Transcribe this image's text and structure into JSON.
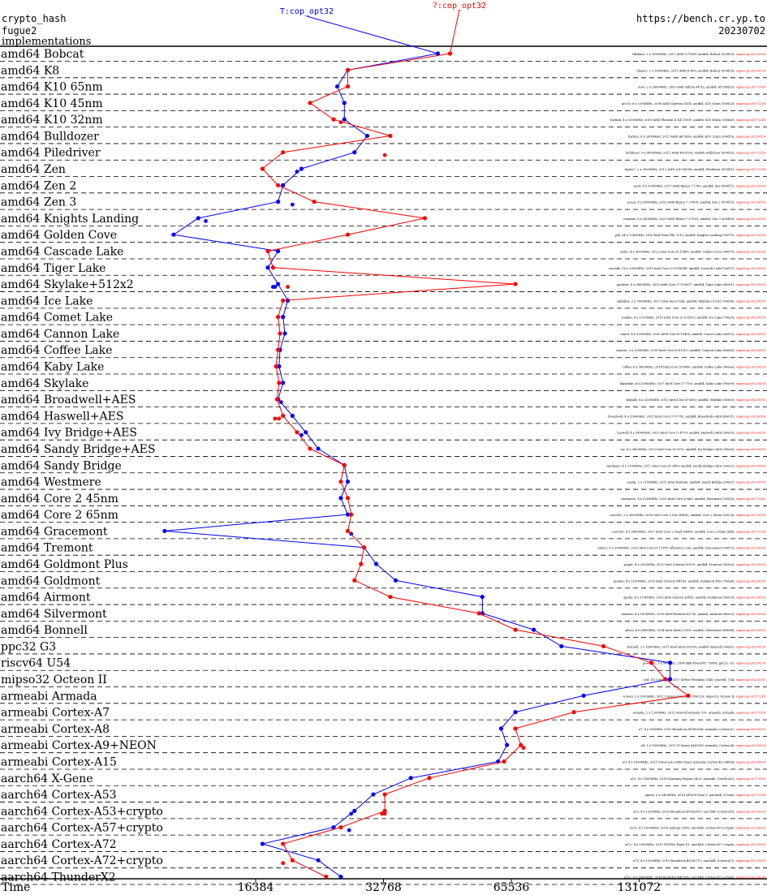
{
  "header": {
    "left_lines": [
      "crypto_hash",
      "fugue2",
      "implementations"
    ],
    "right_lines": [
      "https://bench.cr.yp.to",
      "20230702"
    ]
  },
  "chart_data": {
    "type": "line",
    "xscale": "log2",
    "xlabel": "Time",
    "xticks": [
      16384,
      32768,
      65536,
      131072
    ],
    "xlim": [
      4096,
      262144
    ],
    "colors": {
      "T": "#0000ff",
      "Q": "#ff0000"
    },
    "series": [
      {
        "name": "T:cop_opt32",
        "color": "#0000ff"
      },
      {
        "name": "?:cop_opt32",
        "color": "#ff0000"
      }
    ],
    "categories": [
      "amd64 Bobcat",
      "amd64 K8",
      "amd64 K10 65nm",
      "amd64 K10 45nm",
      "amd64 K10 32nm",
      "amd64 Bulldozer",
      "amd64 Piledriver",
      "amd64 Zen",
      "amd64 Zen 2",
      "amd64 Zen 3",
      "amd64 Knights Landing",
      "amd64 Golden Cove",
      "amd64 Cascade Lake",
      "amd64 Tiger Lake",
      "amd64 Skylake+512x2",
      "amd64 Ice Lake",
      "amd64 Comet Lake",
      "amd64 Cannon Lake",
      "amd64 Coffee Lake",
      "amd64 Kaby Lake",
      "amd64 Skylake",
      "amd64 Broadwell+AES",
      "amd64 Haswell+AES",
      "amd64 Ivy Bridge+AES",
      "amd64 Sandy Bridge+AES",
      "amd64 Sandy Bridge",
      "amd64 Westmere",
      "amd64 Core 2 45nm",
      "amd64 Core 2 65nm",
      "amd64 Gracemont",
      "amd64 Tremont",
      "amd64 Goldmont Plus",
      "amd64 Goldmont",
      "amd64 Airmont",
      "amd64 Silvermont",
      "amd64 Bonnell",
      "ppc32 G3",
      "riscv64 U54",
      "mipso32 Octeon II",
      "armeabi Armada",
      "armeabi Cortex-A7",
      "armeabi Cortex-A8",
      "armeabi Cortex-A9+NEON",
      "armeabi Cortex-A15",
      "aarch64 X-Gene",
      "aarch64 Cortex-A53",
      "aarch64 Cortex-A53+crypto",
      "aarch64 Cortex-A57+crypto",
      "aarch64 Cortex-A72",
      "aarch64 Cortex-A72+crypto",
      "aarch64 ThunderX2"
    ],
    "machines": [
      "bllsbaut; 2 x 1600MHz; 2011 AMD G-T56N; amd64; Bobcat (500f20); supercop-20230530",
      "hlaaO1; 2 x 1800MHz; 2011 AMD E-450; amd64; Bobcat (500f20); supercop-20230530",
      "bore; 2 x 2600MHz; 2005 AMD Athlon 64 X2; amd64; K8 (40f32); supercop-20171020",
      "gcc10; 8 x 2194MHz; 2008 AMD Opteron 8354; amd64; K10 65nm (100f23); supercop-20171218",
      "hydra4; 4 x 3300MHz; 2010 AMD Phenom II X4 1100T; amd64; K10 45nm (100fa0); supercop-20171218",
      "hydra5; 6 x 2800MHz; 2011 AMD A8-3850; amd64; K10 32nm (300f10); supercop-20230530",
      "bulldozer; 8 x 4000MHz; 2012 AMD FX-8350; amd64; Bulldozer (600f20); supercop-20171218",
      "hydra7; 2 x 3900MHz; 2012 AMD A10-5800K; amd64; Piledriver (610f01); supercop-20171218",
      "zen0; 8 x 3500MHz; 2017 AMD Ryzen 7 1700; amd64; Zen (800f11); supercop-20230530",
      "zen2a; 8 x 3600MHz; 2019 AMD Ryzen 7 3700X; amd64; Zen 2 (870f10); supercop-20230530",
      "cezanne; 8 x 3900MHz; 2021 AMD Ryzen 7 5700G; amd64; Zen 3 (a50f00); supercop-20230530",
      "phi; 64 x 1300MHz; 2016 Intel Xeon Phi 7210; amd64; Knights Landing (50671); supercop-20230530",
      "alder; 4 x 3000MHz; 2022 Intel Core i5-12400; amd64; Golden Cove (90675); supercop-20230530",
      "cascade; 18 x 3000MHz; 2019 Intel Core i9-10980XE; amd64; Cascade Lake (50657); supercop-20230530",
      "gardner; 8 x 2800MHz; 2020 Intel Core i7-1165G7; amd64; Tiger Lake (806c1); supercop-20230530",
      "skylakex; 2 x 3500MHz; 2017 Intel Xeon Gold; amd64; Skylake+512x2 (50654); supercop-20230530",
      "icelake; 4 x 1100MHz; 2019 Intel Core i5-1035G1; amd64; Ice Lake (706e5); supercop-20230530",
      "comet; 4 x 3200MHz; 2020 Intel Core i5-10400; amd64; Comet Lake (a0653); supercop-20230530",
      "cannon; 2 x 2200MHz; 2018 Intel Core i3-8121U; amd64; Cannon Lake (60663); supercop-20230530",
      "coffee; 6 x 3600MHz; 2018 Intel Core i5-8400; amd64; Coffee Lake (906ea); supercop-20230530",
      "kabylake; 4 x 3500MHz; 2017 Intel Core i7-7700; amd64; Kaby Lake (906e9); supercop-20230530",
      "skylake; 4 x 3200MHz; 2015 Intel Core i5-6500; amd64; Skylake (506e3); supercop-20230530",
      "broadwell; 4 x 3300MHz; 2015 Intel Core i7-5775C; amd64; Broadwell+AES (40671); supercop-20230530",
      "haswell; 4 x 3400MHz; 2013 Intel Core i7-4770; amd64; Haswell+AES (306c3); supercop-20230530",
      "ivy; 4 x 3400MHz; 2012 Intel Core i5-3570; amd64; Ivy Bridge+AES (306a9); supercop-20230530",
      "sandyaes; 4 x 3100MHz; 2011 Intel Core i5-2400; amd64; Sandy Bridge+AES (206a7); supercop-20230530",
      "sandy; 2 x 2100MHz; 2011 Intel Pentium; amd64; Sandy Bridge (206a7); supercop-20230530",
      "westmere; 4 x 3200MHz; 2010 Intel Core i5-660; amd64; Westmere (20652); supercop-20171020",
      "core245; 2 x 3000MHz; 2009 Intel Core 2 Duo E8400; amd64; Core 2 45nm (1067a); supercop-20230530",
      "core265; 4 x 2400MHz; 2007 Intel Core 2 Quad Q6600; amd64; Core 2 65nm (6fb); supercop-20171218",
      "alder2; 8 x 2900MHz; 2022 Intel Core i5-1235U efficiency core; amd64; Gracemont (90672); supercop-20230530",
      "jasper; 4 x 2000MHz; 2021 Intel Celeron N5105; amd64; Tremont (906c0); supercop-20230530",
      "gemini; 4 x 1100MHz; 2019 Intel Celeron N4100; amd64; Goldmont Plus (706a8); supercop-20230530",
      "apollo; 4 x 1100MHz; 2016 Intel Celeron J3455; amd64; Goldmont (506c9); supercop-20230530",
      "airmont; 4 x 1600MHz; 2016 Intel Pentium N3700; amd64; Airmont (406c3); supercop-20230530",
      "silver; 4 x 2400MHz; 2014 Intel Atom C2550; amd64; Silvermont (406d8); supercop-20230530",
      "bonnell; 2 x 1600MHz; 2011 Intel Atom D2500; amd64; Bonnell (30661); supercop-20230530",
      "powerpc; 1 x 500MHz; 2004 IBM PowerPC 750FX; ppc32; G3; supercop-20230530",
      "u54; 4 x 1000MHz; 2017 SiFive Freedom U540; riscv64; U54; supercop-20230530",
      "octeon; 2 x 1000MHz; 2011 Cavium Octeon II CN6120; mipso32; Octeon II; supercop-20171218",
      "armada; 2 x 1200MHz; 2012 Marvell Armada 370; armeabi; Armada; supercop-20171218",
      "a7; 4 x 900MHz; 2015 Broadcom BCM2836; armeabi; Cortex-A7; supercop-20230530",
      "a8; 1 x 1000MHz; 2012 TI Sitara AM3359; armeabi; Cortex-A8; supercop-20230530",
      "a9; 4 x 1000MHz; 2011 Freescale i.MX6 Quad; armeabi; Cortex-A9+NEON; supercop-20230530",
      "a15; 4 x 2000MHz; 2014 Samsung Exynos 5422; armeabi; Cortex-A15; supercop-20171020",
      "xgene; 8 x 2400MHz; 2014 APM X-Gene 1; aarch64; X-Gene; supercop-20171218",
      "a53; 4 x 1200MHz; 2016 Broadcom BCM2837; aarch64; Cortex-A53; supercop-20230530",
      "a53c; 4 x 1500MHz; 2016 Amlogic S905; aarch64; Cortex-A53+crypto; supercop-20230530",
      "a57c; 4 x 1900MHz; 2015 NVIDIA Tegra X1; aarch64; Cortex-A57+crypto; supercop-20230530",
      "a72; 4 x 1500MHz; 2019 Broadcom BCM2711; aarch64; Cortex-A72; supercop-20230530",
      "a72c; 4 x 1800MHz; 2016 Rockchip RK3399; aarch64; Cortex-A72+crypto; supercop-20230530",
      "thunderx2; 56 x 2500MHz; 2018 Cavium ThunderX2 CN9980; aarch64; ThunderX2; supercop-20230530"
    ],
    "T_values": [
      44000,
      27000,
      25500,
      26500,
      26500,
      30000,
      28000,
      21000,
      19000,
      18500,
      12000,
      10500,
      18500,
      17500,
      18500,
      19500,
      19000,
      19200,
      18700,
      18600,
      19000,
      18500,
      20000,
      21500,
      23000,
      26500,
      27000,
      26000,
      27000,
      10000,
      29500,
      31500,
      35000,
      56000,
      56000,
      74000,
      86000,
      155000,
      155000,
      97000,
      67000,
      62000,
      64000,
      61000,
      38000,
      31000,
      28000,
      25000,
      17000,
      23000,
      26000
    ],
    "Q_values": [
      47000,
      27000,
      27000,
      22000,
      25000,
      34000,
      19000,
      17000,
      18500,
      22500,
      41000,
      27000,
      17500,
      18000,
      67000,
      19000,
      18500,
      18700,
      18500,
      18300,
      18600,
      18400,
      19000,
      20500,
      22000,
      26500,
      26000,
      27000,
      27500,
      27000,
      29500,
      29000,
      28000,
      34000,
      55000,
      67000,
      108000,
      140000,
      151000,
      171000,
      92000,
      67000,
      69000,
      63000,
      42000,
      33000,
      33000,
      26000,
      19000,
      20000,
      24000
    ],
    "T_extra": [
      [
        7,
        20500
      ],
      [
        9,
        20000
      ],
      [
        10,
        12500
      ],
      [
        14,
        18200
      ],
      [
        14,
        18000
      ],
      [
        21,
        18800
      ],
      [
        23,
        21000
      ],
      [
        29,
        27500
      ],
      [
        46,
        27500
      ],
      [
        47,
        27200
      ]
    ],
    "Q_extra": [
      [
        4,
        26000
      ],
      [
        6,
        33000
      ],
      [
        14,
        19500
      ],
      [
        22,
        18200
      ],
      [
        22,
        18600
      ],
      [
        42,
        70000
      ],
      [
        46,
        33000
      ],
      [
        46,
        32500
      ],
      [
        49,
        19000
      ]
    ]
  }
}
